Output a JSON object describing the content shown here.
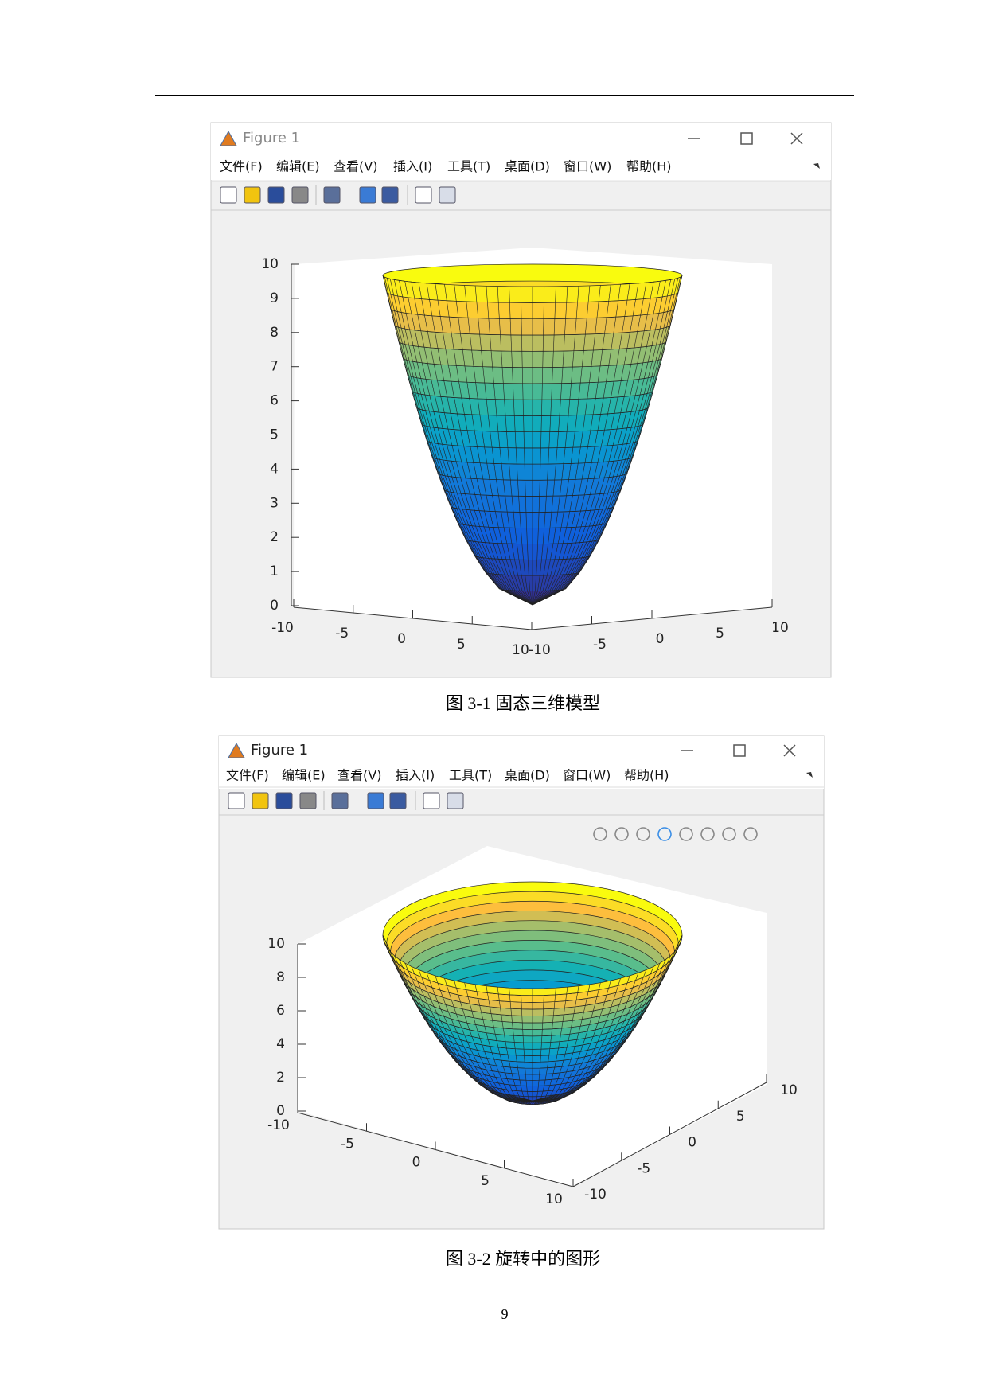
{
  "figures": [
    {
      "title": "Figure 1",
      "menu": [
        "文件(F)",
        "编辑(E)",
        "查看(V)",
        "插入(I)",
        "工具(T)",
        "桌面(D)",
        "窗口(W)",
        "帮助(H)"
      ],
      "z_ticks": [
        0,
        1,
        2,
        3,
        4,
        5,
        6,
        7,
        8,
        9,
        10
      ],
      "x_ticks": [
        -10,
        -5,
        0,
        5,
        10
      ],
      "y_ticks": [
        -10,
        -5,
        0,
        5,
        10
      ],
      "caption": "图 3-1  固态三维模型"
    },
    {
      "title": "Figure 1",
      "menu": [
        "文件(F)",
        "编辑(E)",
        "查看(V)",
        "插入(I)",
        "工具(T)",
        "桌面(D)",
        "窗口(W)",
        "帮助(H)"
      ],
      "z_ticks": [
        0,
        2,
        4,
        6,
        8,
        10
      ],
      "x_ticks": [
        -10,
        -5,
        0,
        5,
        10
      ],
      "y_ticks": [
        -10,
        -5,
        0,
        5,
        10
      ],
      "caption": "图 3-2  旋转中的图形"
    }
  ],
  "page_number": "9"
}
